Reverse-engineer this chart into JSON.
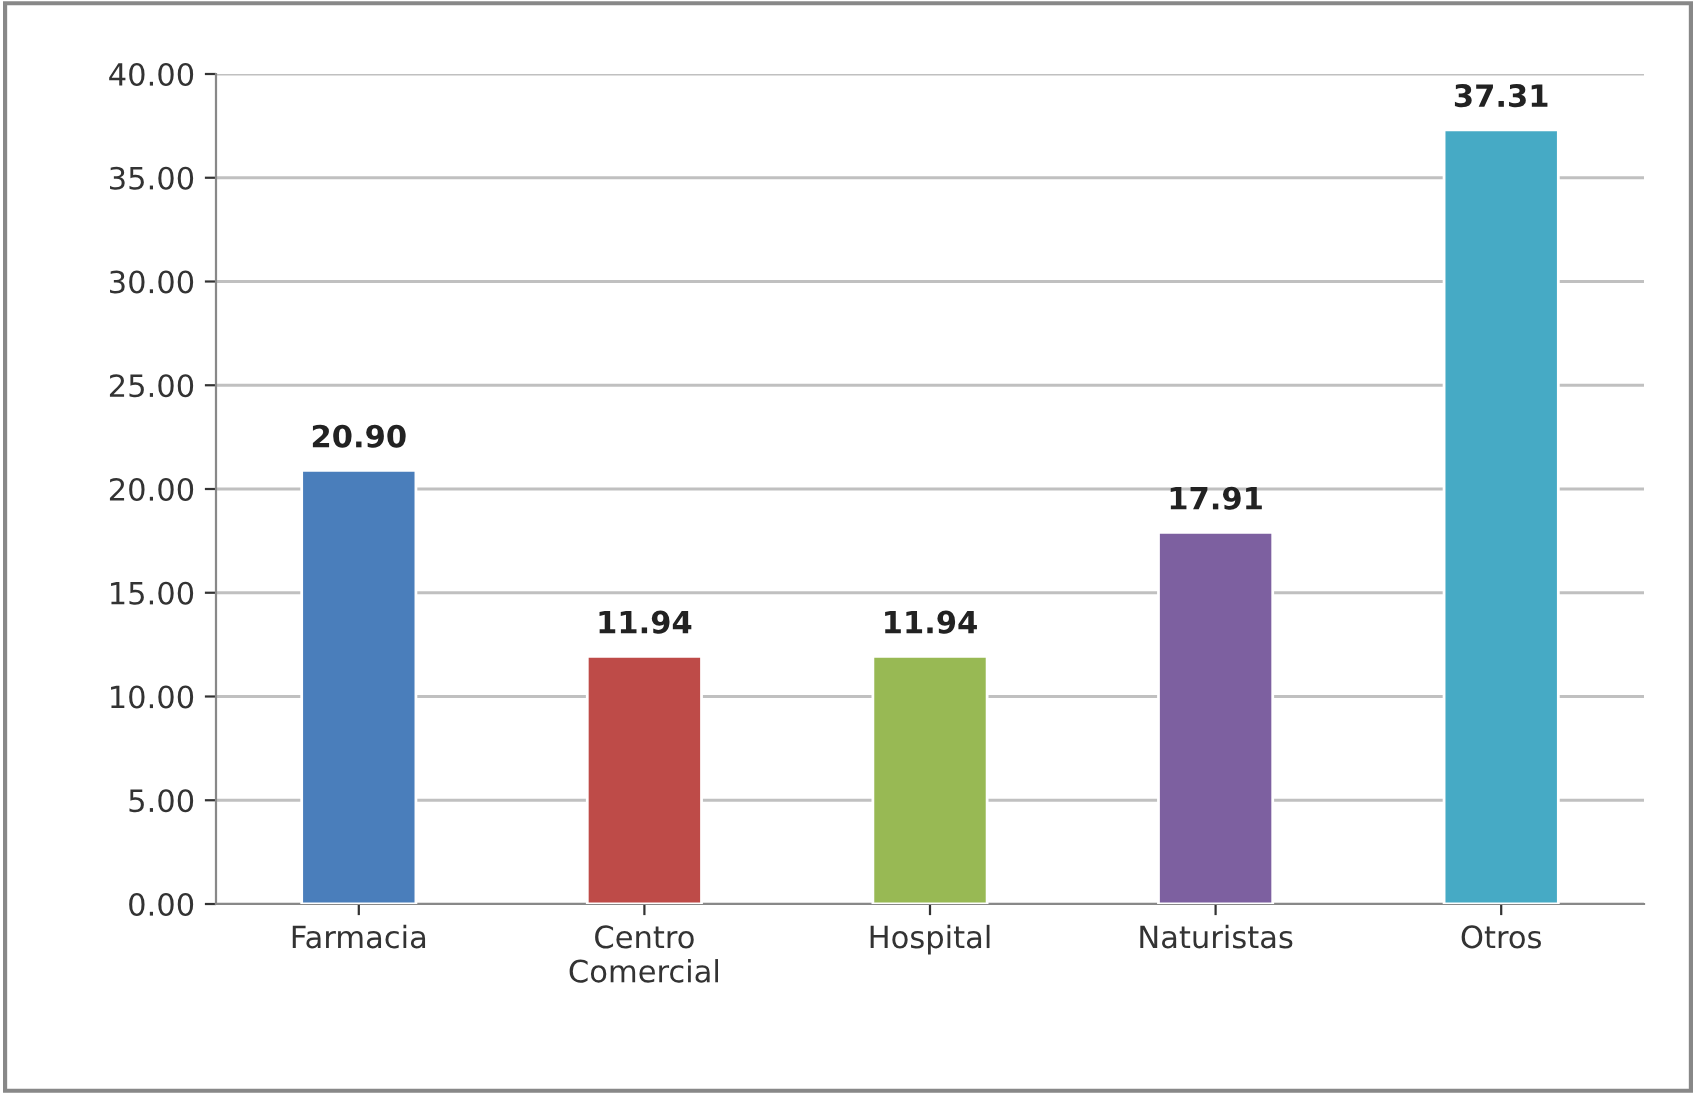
{
  "chart_data": {
    "type": "bar",
    "categories": [
      "Farmacia",
      "Centro\nComercial",
      "Hospital",
      "Naturistas",
      "Otros"
    ],
    "values": [
      20.9,
      11.94,
      11.94,
      17.91,
      37.31
    ],
    "colors": [
      "#4a7ebb",
      "#be4b48",
      "#98b954",
      "#7d60a0",
      "#46aac5"
    ],
    "value_labels": [
      "20.90",
      "11.94",
      "11.94",
      "17.91",
      "37.31"
    ],
    "ylim": [
      0,
      40
    ],
    "yticks": [
      {
        "value": 0,
        "label": "0.00"
      },
      {
        "value": 5,
        "label": "5.00"
      },
      {
        "value": 10,
        "label": "10.00"
      },
      {
        "value": 15,
        "label": "15.00"
      },
      {
        "value": 20,
        "label": "20.00"
      },
      {
        "value": 25,
        "label": "25.00"
      },
      {
        "value": 30,
        "label": "30.00"
      },
      {
        "value": 35,
        "label": "35.00"
      },
      {
        "value": 40,
        "label": "40.00"
      }
    ],
    "grid": "y",
    "legend": false
  }
}
